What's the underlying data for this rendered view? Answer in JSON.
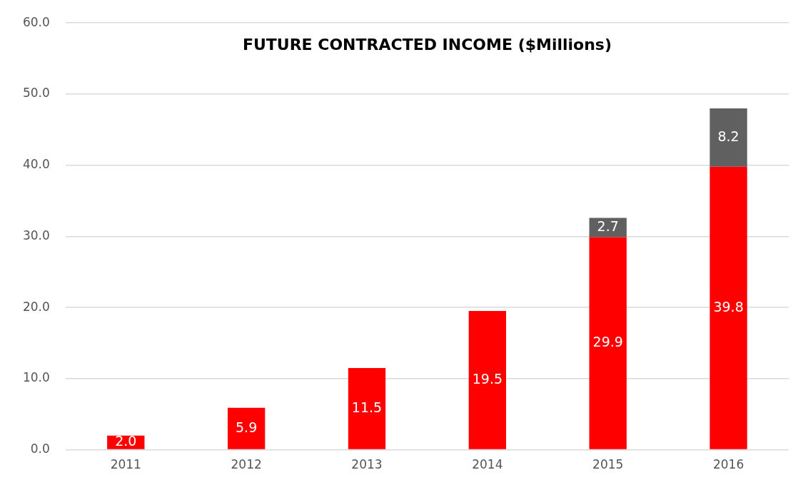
{
  "chart_data": {
    "type": "bar",
    "title": "FUTURE CONTRACTED INCOME ($Millions)",
    "stacked": true,
    "grid": "y",
    "legend": false,
    "categories": [
      "2011",
      "2012",
      "2013",
      "2014",
      "2015",
      "2016"
    ],
    "series": [
      {
        "color": "#ff0000",
        "values": [
          2.0,
          5.9,
          11.5,
          19.5,
          29.9,
          39.8
        ],
        "value_labels": [
          "2.0",
          "5.9",
          "11.5",
          "19.5",
          "29.9",
          "39.8"
        ]
      },
      {
        "color": "#606060",
        "values": [
          null,
          null,
          null,
          null,
          2.7,
          8.2
        ],
        "value_labels": [
          null,
          null,
          null,
          null,
          "2.7",
          "8.2"
        ]
      }
    ],
    "ylim": [
      0,
      60
    ],
    "yticks": [
      {
        "value": 0,
        "label": "0.0"
      },
      {
        "value": 10,
        "label": "10.0"
      },
      {
        "value": 20,
        "label": "20.0"
      },
      {
        "value": 30,
        "label": "30.0"
      },
      {
        "value": 40,
        "label": "40.0"
      },
      {
        "value": 50,
        "label": "50.0"
      },
      {
        "value": 60,
        "label": "60.0"
      }
    ]
  }
}
